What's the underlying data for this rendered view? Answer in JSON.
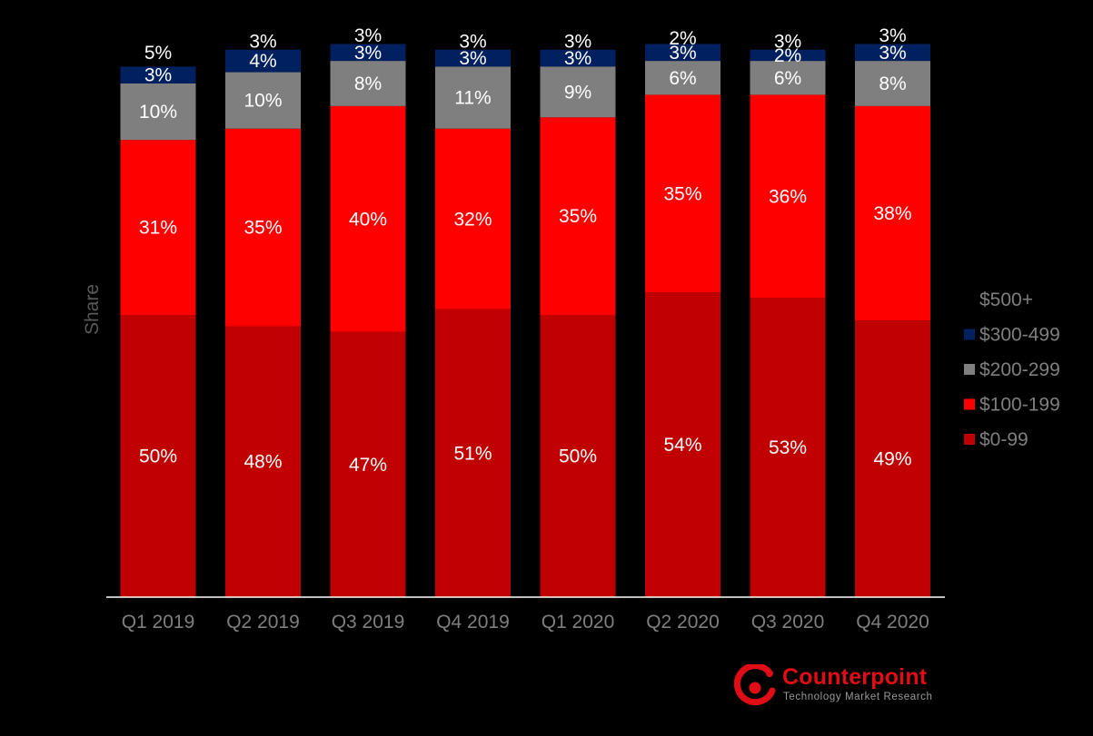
{
  "colors": {
    "background": "#000000",
    "axis_line": "#ffffff",
    "tick_text": "#7f7f7f",
    "label_text": "#ffffff",
    "brand_red": "#e00d16"
  },
  "chart_data": {
    "type": "bar",
    "stacked": true,
    "percent_stacked": true,
    "categories": [
      "Q1 2019",
      "Q2 2019",
      "Q3 2019",
      "Q4 2019",
      "Q1 2020",
      "Q2 2020",
      "Q3 2020",
      "Q4 2020"
    ],
    "series": [
      {
        "name": "$0-99",
        "color": "#c00000",
        "values": [
          50,
          48,
          47,
          51,
          50,
          54,
          53,
          49
        ]
      },
      {
        "name": "$100-199",
        "color": "#ff0000",
        "values": [
          31,
          35,
          40,
          32,
          35,
          35,
          36,
          38
        ]
      },
      {
        "name": "$200-299",
        "color": "#7f7f7f",
        "values": [
          10,
          10,
          8,
          11,
          9,
          6,
          6,
          8
        ]
      },
      {
        "name": "$300-499",
        "color": "#002060",
        "values": [
          3,
          4,
          3,
          3,
          3,
          3,
          2,
          3
        ]
      },
      {
        "name": "$500+",
        "color": "#000000",
        "values": [
          5,
          3,
          3,
          3,
          3,
          2,
          3,
          3
        ]
      }
    ],
    "value_suffix": "%",
    "ylabel": "Share",
    "xlabel": "",
    "ylim": [
      0,
      100
    ],
    "grid": false,
    "legend_position": "right"
  },
  "logo": {
    "name": "Counterpoint",
    "tagline": "Technology Market Research"
  }
}
